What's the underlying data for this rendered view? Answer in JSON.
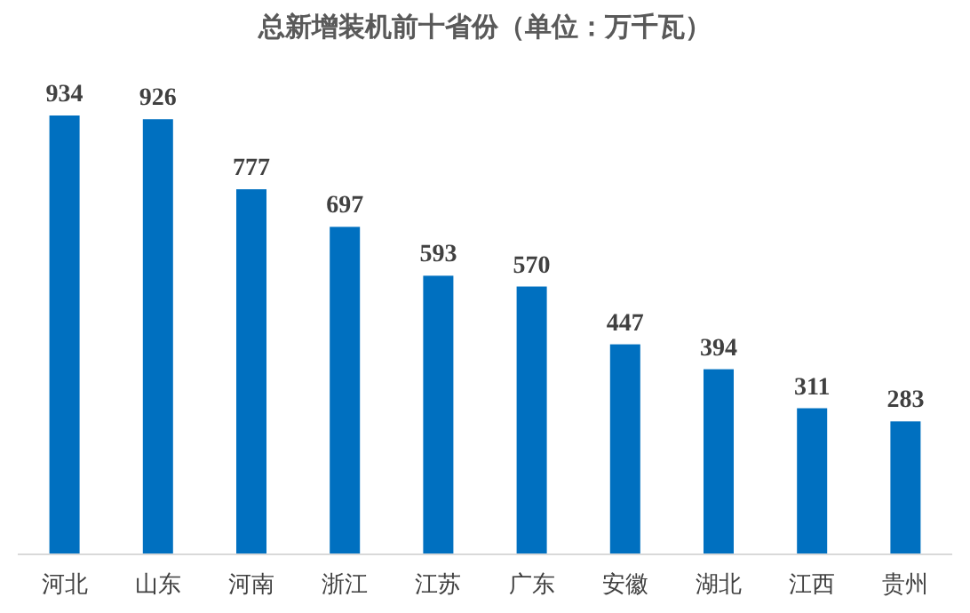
{
  "chart_data": {
    "type": "bar",
    "title": "总新增装机前十省份（单位：万千瓦）",
    "categories": [
      "河北",
      "山东",
      "河南",
      "浙江",
      "江苏",
      "广东",
      "安徽",
      "湖北",
      "江西",
      "贵州"
    ],
    "values": [
      934,
      926,
      777,
      697,
      593,
      570,
      447,
      394,
      311,
      283
    ],
    "color": "#0070c0",
    "data_labels": true
  }
}
